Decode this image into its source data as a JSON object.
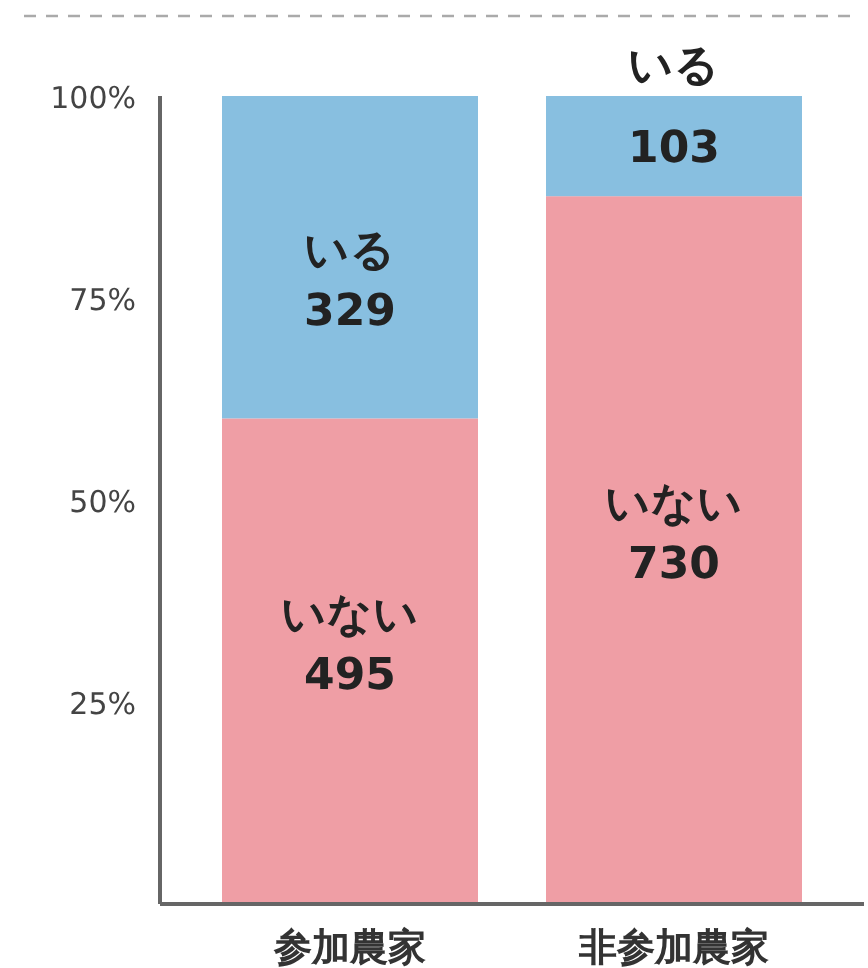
{
  "chart_data": {
    "type": "bar",
    "stacked": true,
    "categories": [
      "参加農家",
      "非参加農家"
    ],
    "series": [
      {
        "name": "いない",
        "color": "#ef9ea5",
        "values": [
          60.1,
          87.6
        ]
      },
      {
        "name": "いる",
        "color": "#88bfe0",
        "values": [
          39.9,
          12.4
        ]
      }
    ],
    "annotations": [
      "495",
      "730",
      "329",
      "103"
    ],
    "ylim": [
      0,
      100
    ],
    "yticks": [
      {
        "value": 25,
        "label": "25%"
      },
      {
        "value": 50,
        "label": "50%"
      },
      {
        "value": 75,
        "label": "75%"
      },
      {
        "value": 100,
        "label": "100%"
      }
    ],
    "grid": false,
    "legend": false
  }
}
